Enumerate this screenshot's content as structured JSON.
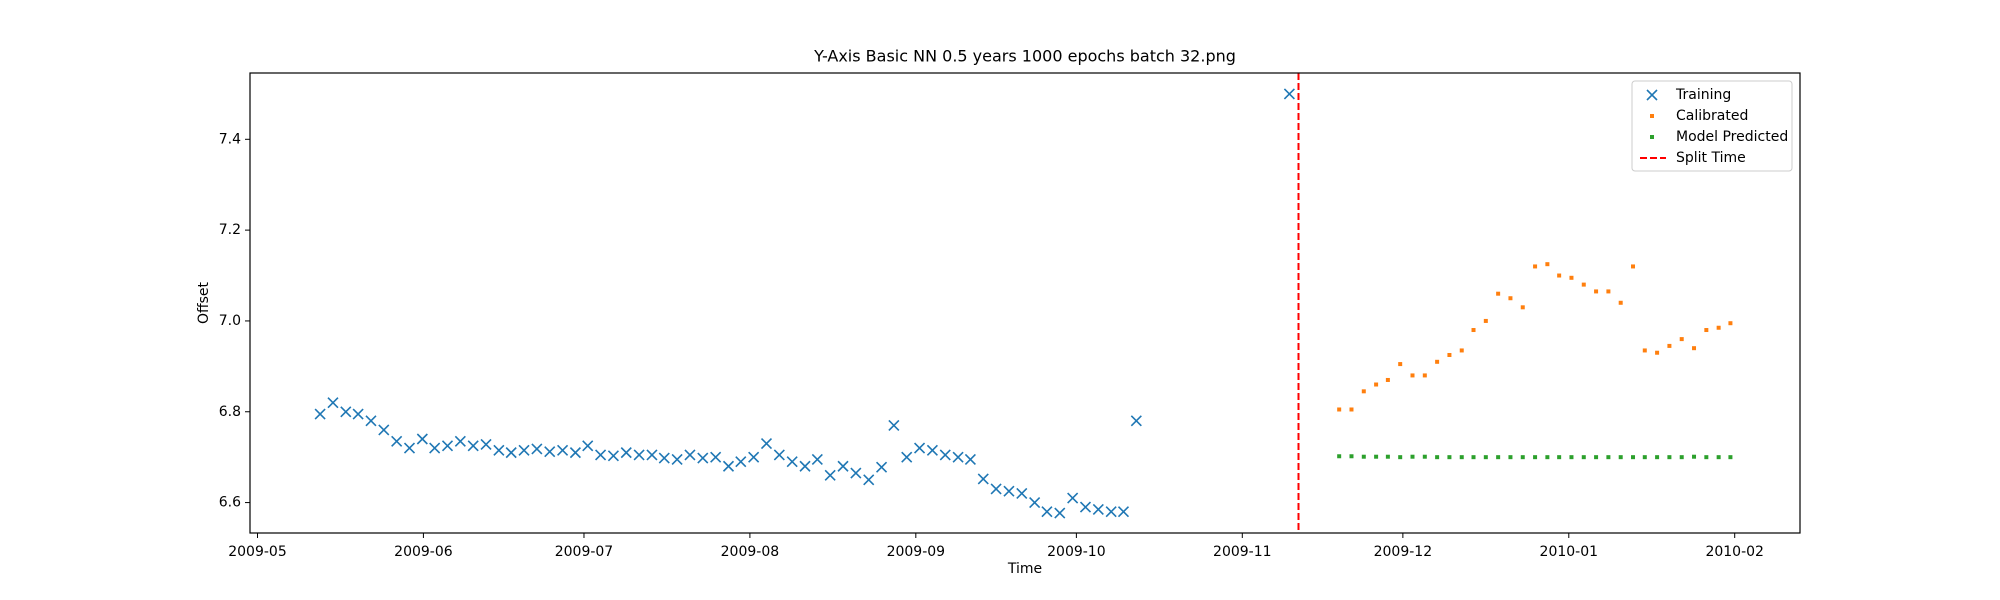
{
  "chart_data": {
    "type": "scatter",
    "title": "Y-Axis Basic NN 0.5 years 1000 epochs batch 32.png",
    "xlabel": "Time",
    "ylabel": "Offset",
    "xlim": [
      14363.6,
      14653.2
    ],
    "ylim": [
      6.533,
      7.546
    ],
    "xticks": [
      {
        "value": 14365,
        "label": "2009-05"
      },
      {
        "value": 14396,
        "label": "2009-06"
      },
      {
        "value": 14426,
        "label": "2009-07"
      },
      {
        "value": 14457,
        "label": "2009-08"
      },
      {
        "value": 14488,
        "label": "2009-09"
      },
      {
        "value": 14518,
        "label": "2009-10"
      },
      {
        "value": 14549,
        "label": "2009-11"
      },
      {
        "value": 14579,
        "label": "2009-12"
      },
      {
        "value": 14610,
        "label": "2010-01"
      },
      {
        "value": 14641,
        "label": "2010-02"
      }
    ],
    "yticks": [
      6.6,
      6.8,
      {
        "value": 7,
        "label": "7.0"
      },
      7.2,
      7.4
    ],
    "legend": "upper right",
    "series": [
      {
        "name": "Training",
        "color": "#1f77b4",
        "marker": "x",
        "x": [
          14376.7,
          14379.1,
          14381.5,
          14383.8,
          14386.2,
          14388.6,
          14391.0,
          14393.4,
          14395.8,
          14398.1,
          14400.5,
          14402.9,
          14405.3,
          14407.7,
          14410.1,
          14412.4,
          14414.8,
          14417.2,
          14419.6,
          14422.0,
          14424.4,
          14426.7,
          14429.1,
          14431.5,
          14433.9,
          14436.3,
          14438.7,
          14441.0,
          14443.4,
          14445.8,
          14448.2,
          14450.6,
          14453.0,
          14455.3,
          14457.7,
          14460.1,
          14462.5,
          14464.9,
          14467.3,
          14469.6,
          14472.0,
          14474.4,
          14476.8,
          14479.2,
          14481.6,
          14483.9,
          14486.3,
          14488.7,
          14491.1,
          14493.5,
          14495.9,
          14498.2,
          14500.6,
          14503.0,
          14505.4,
          14507.8,
          14510.2,
          14512.5,
          14514.9,
          14517.3,
          14519.7,
          14522.1,
          14524.5,
          14526.8,
          14529.2,
          14557.8
        ],
        "values": [
          6.795,
          6.82,
          6.8,
          6.795,
          6.78,
          6.76,
          6.735,
          6.72,
          6.74,
          6.72,
          6.725,
          6.735,
          6.725,
          6.728,
          6.715,
          6.71,
          6.715,
          6.718,
          6.712,
          6.715,
          6.71,
          6.725,
          6.705,
          6.703,
          6.71,
          6.705,
          6.705,
          6.698,
          6.695,
          6.705,
          6.698,
          6.7,
          6.68,
          6.69,
          6.7,
          6.73,
          6.705,
          6.69,
          6.68,
          6.695,
          6.66,
          6.68,
          6.665,
          6.65,
          6.678,
          6.77,
          6.7,
          6.72,
          6.715,
          6.705,
          6.7,
          6.695,
          6.652,
          6.63,
          6.625,
          6.62,
          6.6,
          6.58,
          6.577,
          6.61,
          6.59,
          6.585,
          6.58,
          6.58,
          6.78,
          7.5
        ]
      },
      {
        "name": "Calibrated",
        "color": "#ff7f0e",
        "marker": "dot",
        "x": [
          14567.1,
          14569.4,
          14571.7,
          14574.0,
          14576.2,
          14578.5,
          14580.8,
          14583.1,
          14585.4,
          14587.7,
          14590.0,
          14592.2,
          14594.5,
          14596.8,
          14599.1,
          14601.4,
          14603.7,
          14606.0,
          14608.2,
          14610.5,
          14612.8,
          14615.1,
          14617.4,
          14619.7,
          14622.0,
          14624.2,
          14626.5,
          14628.8,
          14631.1,
          14633.4,
          14635.7,
          14638.0,
          14640.2
        ],
        "values": [
          6.805,
          6.805,
          6.845,
          6.86,
          6.87,
          6.905,
          6.88,
          6.88,
          6.91,
          6.925,
          6.935,
          6.98,
          7.0,
          7.06,
          7.05,
          7.03,
          7.12,
          7.125,
          7.1,
          7.095,
          7.08,
          7.065,
          7.065,
          7.04,
          7.12,
          6.935,
          6.93,
          6.945,
          6.96,
          6.94,
          6.98,
          6.985,
          6.995
        ]
      },
      {
        "name": "Model Predicted",
        "color": "#2ca02c",
        "marker": "dot",
        "x": [
          14567.1,
          14569.4,
          14571.7,
          14574.0,
          14576.2,
          14578.5,
          14580.8,
          14583.1,
          14585.4,
          14587.7,
          14590.0,
          14592.2,
          14594.5,
          14596.8,
          14599.1,
          14601.4,
          14603.7,
          14606.0,
          14608.2,
          14610.5,
          14612.8,
          14615.1,
          14617.4,
          14619.7,
          14622.0,
          14624.2,
          14626.5,
          14628.8,
          14631.1,
          14633.4,
          14635.7,
          14638.0,
          14640.2
        ],
        "values": [
          6.702,
          6.702,
          6.701,
          6.701,
          6.701,
          6.7,
          6.701,
          6.701,
          6.7,
          6.7,
          6.7,
          6.7,
          6.7,
          6.7,
          6.7,
          6.7,
          6.7,
          6.7,
          6.7,
          6.7,
          6.7,
          6.7,
          6.7,
          6.7,
          6.7,
          6.7,
          6.7,
          6.7,
          6.7,
          6.701,
          6.7,
          6.7,
          6.7
        ]
      }
    ],
    "vlines": [
      {
        "name": "Split Time",
        "x": 14559.5,
        "color": "red",
        "style": "dashed"
      }
    ]
  }
}
